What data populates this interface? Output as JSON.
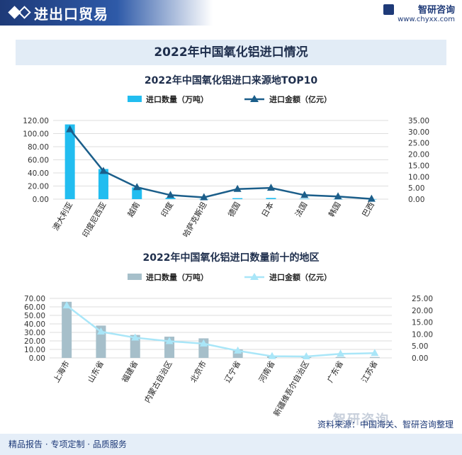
{
  "header": {
    "title": "进出口贸易",
    "brand_name": "智研咨询",
    "brand_url": "www.chyxx.com"
  },
  "banner_title": "2022年中国氧化铝进口情况",
  "footer": {
    "left": "精品报告 · 专项定制 · 品质服务",
    "source": "资料来源：中国海关、智研咨询整理",
    "watermark": "智研咨询"
  },
  "colors": {
    "chart1_bar": "#22bdf0",
    "chart1_line": "#1b5e8a",
    "chart2_bar": "#a6bfca",
    "chart2_line": "#a9e6f8"
  },
  "chart_data": [
    {
      "type": "bar",
      "title": "2022年中国氧化铝进口来源地TOP10",
      "categories": [
        "澳大利亚",
        "印度尼西亚",
        "越南",
        "印度",
        "哈萨克斯坦",
        "德国",
        "日本",
        "法国",
        "韩国",
        "巴西"
      ],
      "series": [
        {
          "name": "进口数量（万吨）",
          "type": "bar",
          "axis": "left",
          "values": [
            114,
            46,
            18,
            2,
            0.3,
            1.5,
            1.8,
            0.6,
            0.3,
            0.1
          ]
        },
        {
          "name": "进口金额（亿元）",
          "type": "line",
          "axis": "right",
          "marker": "triangle",
          "values": [
            31,
            12.5,
            5.3,
            1.8,
            0.8,
            4.5,
            5,
            1.8,
            1.2,
            0.1
          ]
        }
      ],
      "yleft": {
        "range": [
          0,
          120
        ],
        "ticks": [
          "0.00",
          "20.00",
          "40.00",
          "60.00",
          "80.00",
          "100.00",
          "120.00"
        ]
      },
      "yright": {
        "range": [
          0,
          35
        ],
        "ticks": [
          "0.00",
          "5.00",
          "10.00",
          "15.00",
          "20.00",
          "25.00",
          "30.00",
          "35.00"
        ]
      },
      "grid": true,
      "legend": "top"
    },
    {
      "type": "bar",
      "title": "2022年中国氧化铝进口数量前十的地区",
      "categories": [
        "上海市",
        "山东省",
        "福建省",
        "内蒙古自治区",
        "北京市",
        "辽宁省",
        "河南省",
        "新疆维吾尔自治区",
        "广东省",
        "江苏省"
      ],
      "series": [
        {
          "name": "进口数量（万吨）",
          "type": "bar",
          "axis": "left",
          "values": [
            66,
            38,
            27,
            25,
            23,
            10,
            2,
            1,
            1,
            1
          ]
        },
        {
          "name": "进口金额（亿元）",
          "type": "line",
          "axis": "right",
          "marker": "triangle",
          "values": [
            22,
            11,
            8.5,
            7,
            6,
            3,
            0.7,
            0.6,
            1.7,
            2
          ]
        }
      ],
      "yleft": {
        "range": [
          0,
          70
        ],
        "ticks": [
          "0.00",
          "10.00",
          "20.00",
          "30.00",
          "40.00",
          "50.00",
          "60.00",
          "70.00"
        ]
      },
      "yright": {
        "range": [
          0,
          25
        ],
        "ticks": [
          "0.00",
          "5.00",
          "10.00",
          "15.00",
          "20.00",
          "25.00"
        ]
      },
      "grid": true,
      "legend": "top"
    }
  ]
}
